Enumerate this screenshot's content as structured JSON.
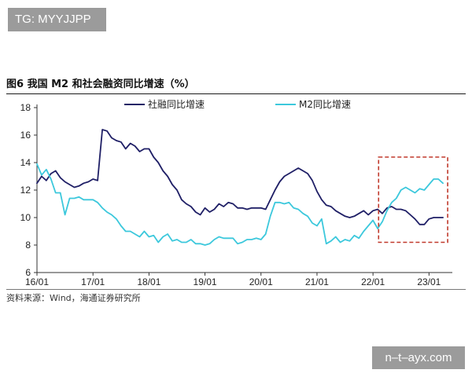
{
  "watermark_top": "TG: MYYJJPP",
  "watermark_bottom": "n–t–ayx.com",
  "figure_title": "图6  我国 M2 和社会融资同比增速（%）",
  "source_text": "资料来源：Wind，海通证券研究所",
  "colors": {
    "social_financing": "#1f1f66",
    "m2": "#3cc8dc",
    "highlight": "#c0392b"
  },
  "chart_data": {
    "type": "line",
    "title": "图6 我国 M2 和社会融资同比增速（%）",
    "xlabel": "",
    "ylabel": "",
    "ylim": [
      6,
      18
    ],
    "yticks": [
      6,
      8,
      10,
      12,
      14,
      16,
      18
    ],
    "xlim": [
      0,
      89
    ],
    "x_tick_labels": [
      "16/01",
      "17/01",
      "18/01",
      "19/01",
      "20/01",
      "21/01",
      "22/01",
      "23/01"
    ],
    "x_tick_positions": [
      0,
      12,
      24,
      36,
      48,
      60,
      72,
      84
    ],
    "legend": {
      "placement": "top"
    },
    "highlight": {
      "x_range": [
        73.2,
        88
      ],
      "y_range": [
        8.2,
        14.4
      ],
      "style": "dashed-box"
    },
    "series": [
      {
        "name": "社融同比增速",
        "values": [
          12.5,
          13.0,
          12.7,
          13.2,
          13.4,
          12.9,
          12.6,
          12.4,
          12.2,
          12.3,
          12.5,
          12.6,
          12.8,
          12.7,
          16.4,
          16.3,
          15.8,
          15.6,
          15.5,
          15.0,
          15.4,
          15.2,
          14.8,
          15.0,
          15.0,
          14.4,
          14.0,
          13.4,
          13.0,
          12.4,
          12.0,
          11.3,
          11.0,
          10.8,
          10.4,
          10.2,
          10.7,
          10.4,
          10.6,
          11.0,
          10.8,
          11.1,
          11.0,
          10.7,
          10.7,
          10.6,
          10.7,
          10.7,
          10.7,
          10.6,
          11.3,
          12.0,
          12.6,
          13.0,
          13.2,
          13.4,
          13.6,
          13.4,
          13.2,
          12.7,
          11.9,
          11.3,
          10.9,
          10.8,
          10.5,
          10.3,
          10.1,
          10.0,
          10.1,
          10.3,
          10.5,
          10.2,
          10.5,
          10.6,
          10.3,
          10.7,
          10.8,
          10.6,
          10.6,
          10.5,
          10.2,
          9.9,
          9.5,
          9.5,
          9.9,
          10.0,
          10.0,
          10.0
        ]
      },
      {
        "name": "M2同比增速",
        "values": [
          13.9,
          13.1,
          13.5,
          12.8,
          11.8,
          11.8,
          10.2,
          11.4,
          11.4,
          11.5,
          11.3,
          11.3,
          11.3,
          11.1,
          10.7,
          10.4,
          10.2,
          9.9,
          9.4,
          9.0,
          9.0,
          8.8,
          8.6,
          9.0,
          8.6,
          8.7,
          8.2,
          8.6,
          8.8,
          8.3,
          8.4,
          8.2,
          8.2,
          8.4,
          8.1,
          8.1,
          8.0,
          8.1,
          8.4,
          8.6,
          8.5,
          8.5,
          8.5,
          8.1,
          8.2,
          8.4,
          8.4,
          8.5,
          8.4,
          8.8,
          10.1,
          11.1,
          11.1,
          11.0,
          11.1,
          10.7,
          10.6,
          10.3,
          10.1,
          9.6,
          9.4,
          9.9,
          8.1,
          8.3,
          8.6,
          8.2,
          8.4,
          8.3,
          8.7,
          8.5,
          9.0,
          9.4,
          9.8,
          9.2,
          9.7,
          10.5,
          11.1,
          11.4,
          12.0,
          12.2,
          12.0,
          11.8,
          12.1,
          12.0,
          12.4,
          12.8,
          12.8,
          12.5
        ]
      }
    ]
  }
}
